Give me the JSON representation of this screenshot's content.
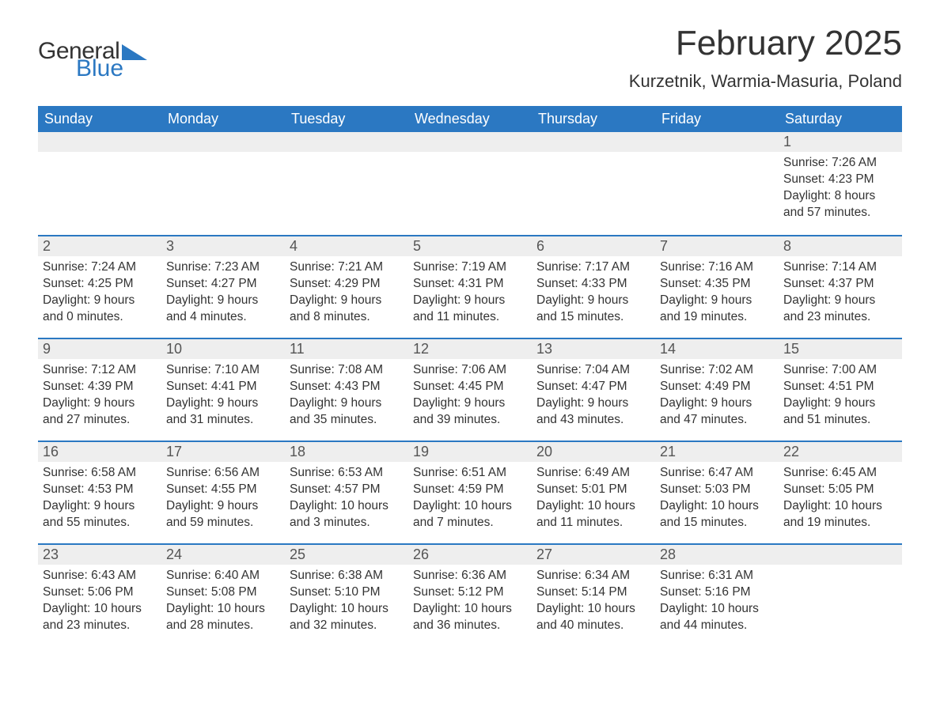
{
  "logo": {
    "line1": "General",
    "line2": "Blue"
  },
  "title": "February 2025",
  "location": "Kurzetnik, Warmia-Masuria, Poland",
  "style": {
    "header_bg": "#2b78c2",
    "header_text": "#ffffff",
    "day_header_bg": "#eeeeee",
    "day_header_border": "#2b78c2",
    "body_bg": "#ffffff",
    "text_color": "#333333",
    "title_fontsize": 44,
    "location_fontsize": 22,
    "weekday_fontsize": 18,
    "daynum_fontsize": 18,
    "body_fontsize": 15.5,
    "columns": 7,
    "rows": 5
  },
  "weekdays": [
    "Sunday",
    "Monday",
    "Tuesday",
    "Wednesday",
    "Thursday",
    "Friday",
    "Saturday"
  ],
  "days": [
    {
      "n": "",
      "sunrise": "",
      "sunset": "",
      "daylight": ""
    },
    {
      "n": "",
      "sunrise": "",
      "sunset": "",
      "daylight": ""
    },
    {
      "n": "",
      "sunrise": "",
      "sunset": "",
      "daylight": ""
    },
    {
      "n": "",
      "sunrise": "",
      "sunset": "",
      "daylight": ""
    },
    {
      "n": "",
      "sunrise": "",
      "sunset": "",
      "daylight": ""
    },
    {
      "n": "",
      "sunrise": "",
      "sunset": "",
      "daylight": ""
    },
    {
      "n": "1",
      "sunrise": "Sunrise: 7:26 AM",
      "sunset": "Sunset: 4:23 PM",
      "daylight": "Daylight: 8 hours and 57 minutes."
    },
    {
      "n": "2",
      "sunrise": "Sunrise: 7:24 AM",
      "sunset": "Sunset: 4:25 PM",
      "daylight": "Daylight: 9 hours and 0 minutes."
    },
    {
      "n": "3",
      "sunrise": "Sunrise: 7:23 AM",
      "sunset": "Sunset: 4:27 PM",
      "daylight": "Daylight: 9 hours and 4 minutes."
    },
    {
      "n": "4",
      "sunrise": "Sunrise: 7:21 AM",
      "sunset": "Sunset: 4:29 PM",
      "daylight": "Daylight: 9 hours and 8 minutes."
    },
    {
      "n": "5",
      "sunrise": "Sunrise: 7:19 AM",
      "sunset": "Sunset: 4:31 PM",
      "daylight": "Daylight: 9 hours and 11 minutes."
    },
    {
      "n": "6",
      "sunrise": "Sunrise: 7:17 AM",
      "sunset": "Sunset: 4:33 PM",
      "daylight": "Daylight: 9 hours and 15 minutes."
    },
    {
      "n": "7",
      "sunrise": "Sunrise: 7:16 AM",
      "sunset": "Sunset: 4:35 PM",
      "daylight": "Daylight: 9 hours and 19 minutes."
    },
    {
      "n": "8",
      "sunrise": "Sunrise: 7:14 AM",
      "sunset": "Sunset: 4:37 PM",
      "daylight": "Daylight: 9 hours and 23 minutes."
    },
    {
      "n": "9",
      "sunrise": "Sunrise: 7:12 AM",
      "sunset": "Sunset: 4:39 PM",
      "daylight": "Daylight: 9 hours and 27 minutes."
    },
    {
      "n": "10",
      "sunrise": "Sunrise: 7:10 AM",
      "sunset": "Sunset: 4:41 PM",
      "daylight": "Daylight: 9 hours and 31 minutes."
    },
    {
      "n": "11",
      "sunrise": "Sunrise: 7:08 AM",
      "sunset": "Sunset: 4:43 PM",
      "daylight": "Daylight: 9 hours and 35 minutes."
    },
    {
      "n": "12",
      "sunrise": "Sunrise: 7:06 AM",
      "sunset": "Sunset: 4:45 PM",
      "daylight": "Daylight: 9 hours and 39 minutes."
    },
    {
      "n": "13",
      "sunrise": "Sunrise: 7:04 AM",
      "sunset": "Sunset: 4:47 PM",
      "daylight": "Daylight: 9 hours and 43 minutes."
    },
    {
      "n": "14",
      "sunrise": "Sunrise: 7:02 AM",
      "sunset": "Sunset: 4:49 PM",
      "daylight": "Daylight: 9 hours and 47 minutes."
    },
    {
      "n": "15",
      "sunrise": "Sunrise: 7:00 AM",
      "sunset": "Sunset: 4:51 PM",
      "daylight": "Daylight: 9 hours and 51 minutes."
    },
    {
      "n": "16",
      "sunrise": "Sunrise: 6:58 AM",
      "sunset": "Sunset: 4:53 PM",
      "daylight": "Daylight: 9 hours and 55 minutes."
    },
    {
      "n": "17",
      "sunrise": "Sunrise: 6:56 AM",
      "sunset": "Sunset: 4:55 PM",
      "daylight": "Daylight: 9 hours and 59 minutes."
    },
    {
      "n": "18",
      "sunrise": "Sunrise: 6:53 AM",
      "sunset": "Sunset: 4:57 PM",
      "daylight": "Daylight: 10 hours and 3 minutes."
    },
    {
      "n": "19",
      "sunrise": "Sunrise: 6:51 AM",
      "sunset": "Sunset: 4:59 PM",
      "daylight": "Daylight: 10 hours and 7 minutes."
    },
    {
      "n": "20",
      "sunrise": "Sunrise: 6:49 AM",
      "sunset": "Sunset: 5:01 PM",
      "daylight": "Daylight: 10 hours and 11 minutes."
    },
    {
      "n": "21",
      "sunrise": "Sunrise: 6:47 AM",
      "sunset": "Sunset: 5:03 PM",
      "daylight": "Daylight: 10 hours and 15 minutes."
    },
    {
      "n": "22",
      "sunrise": "Sunrise: 6:45 AM",
      "sunset": "Sunset: 5:05 PM",
      "daylight": "Daylight: 10 hours and 19 minutes."
    },
    {
      "n": "23",
      "sunrise": "Sunrise: 6:43 AM",
      "sunset": "Sunset: 5:06 PM",
      "daylight": "Daylight: 10 hours and 23 minutes."
    },
    {
      "n": "24",
      "sunrise": "Sunrise: 6:40 AM",
      "sunset": "Sunset: 5:08 PM",
      "daylight": "Daylight: 10 hours and 28 minutes."
    },
    {
      "n": "25",
      "sunrise": "Sunrise: 6:38 AM",
      "sunset": "Sunset: 5:10 PM",
      "daylight": "Daylight: 10 hours and 32 minutes."
    },
    {
      "n": "26",
      "sunrise": "Sunrise: 6:36 AM",
      "sunset": "Sunset: 5:12 PM",
      "daylight": "Daylight: 10 hours and 36 minutes."
    },
    {
      "n": "27",
      "sunrise": "Sunrise: 6:34 AM",
      "sunset": "Sunset: 5:14 PM",
      "daylight": "Daylight: 10 hours and 40 minutes."
    },
    {
      "n": "28",
      "sunrise": "Sunrise: 6:31 AM",
      "sunset": "Sunset: 5:16 PM",
      "daylight": "Daylight: 10 hours and 44 minutes."
    },
    {
      "n": "",
      "sunrise": "",
      "sunset": "",
      "daylight": ""
    }
  ]
}
